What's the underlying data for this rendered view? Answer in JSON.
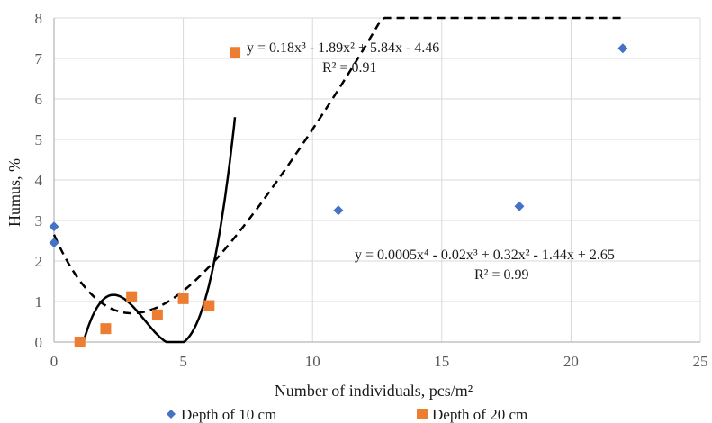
{
  "chart_data": {
    "type": "scatter",
    "xlabel": "Number of individuals,  pcs/m²",
    "ylabel": "Humus, %",
    "xlim": [
      0,
      25
    ],
    "ylim": [
      0,
      8
    ],
    "x_ticks": [
      "0",
      "5",
      "10",
      "15",
      "20",
      "25"
    ],
    "y_ticks": [
      "0",
      "1",
      "2",
      "3",
      "4",
      "5",
      "6",
      "7",
      "8"
    ],
    "grid": true,
    "legend_position": "bottom",
    "series": [
      {
        "name": "Depth of 10 cm",
        "marker": "diamond",
        "color": "#4472C4",
        "points": [
          [
            0,
            2.85
          ],
          [
            0,
            2.45
          ],
          [
            11,
            3.25
          ],
          [
            18,
            3.35
          ],
          [
            22,
            7.25
          ]
        ],
        "trendline": {
          "style": "dashed",
          "color": "#000000",
          "coefficients": [
            0.0005,
            -0.02,
            0.32,
            -1.44,
            2.65
          ],
          "x_range": [
            0,
            22
          ],
          "equation": "y = 0.0005x⁴ - 0.02x³ + 0.32x² - 1.44x + 2.65",
          "r2": "R² = 0.99"
        }
      },
      {
        "name": "Depth of 20 cm",
        "marker": "square",
        "color": "#ED7D31",
        "points": [
          [
            1,
            0.0
          ],
          [
            2,
            0.33
          ],
          [
            3,
            1.12
          ],
          [
            4,
            0.67
          ],
          [
            5,
            1.07
          ],
          [
            6,
            0.9
          ],
          [
            7,
            7.15
          ]
        ],
        "trendline": {
          "style": "solid",
          "color": "#000000",
          "coefficients": [
            0.18,
            -1.89,
            5.84,
            -4.46
          ],
          "x_range": [
            1,
            7
          ],
          "equation": "y = 0.18x³ - 1.89x² + 5.84x - 4.46",
          "r2": "R² = 0.91"
        }
      }
    ]
  }
}
